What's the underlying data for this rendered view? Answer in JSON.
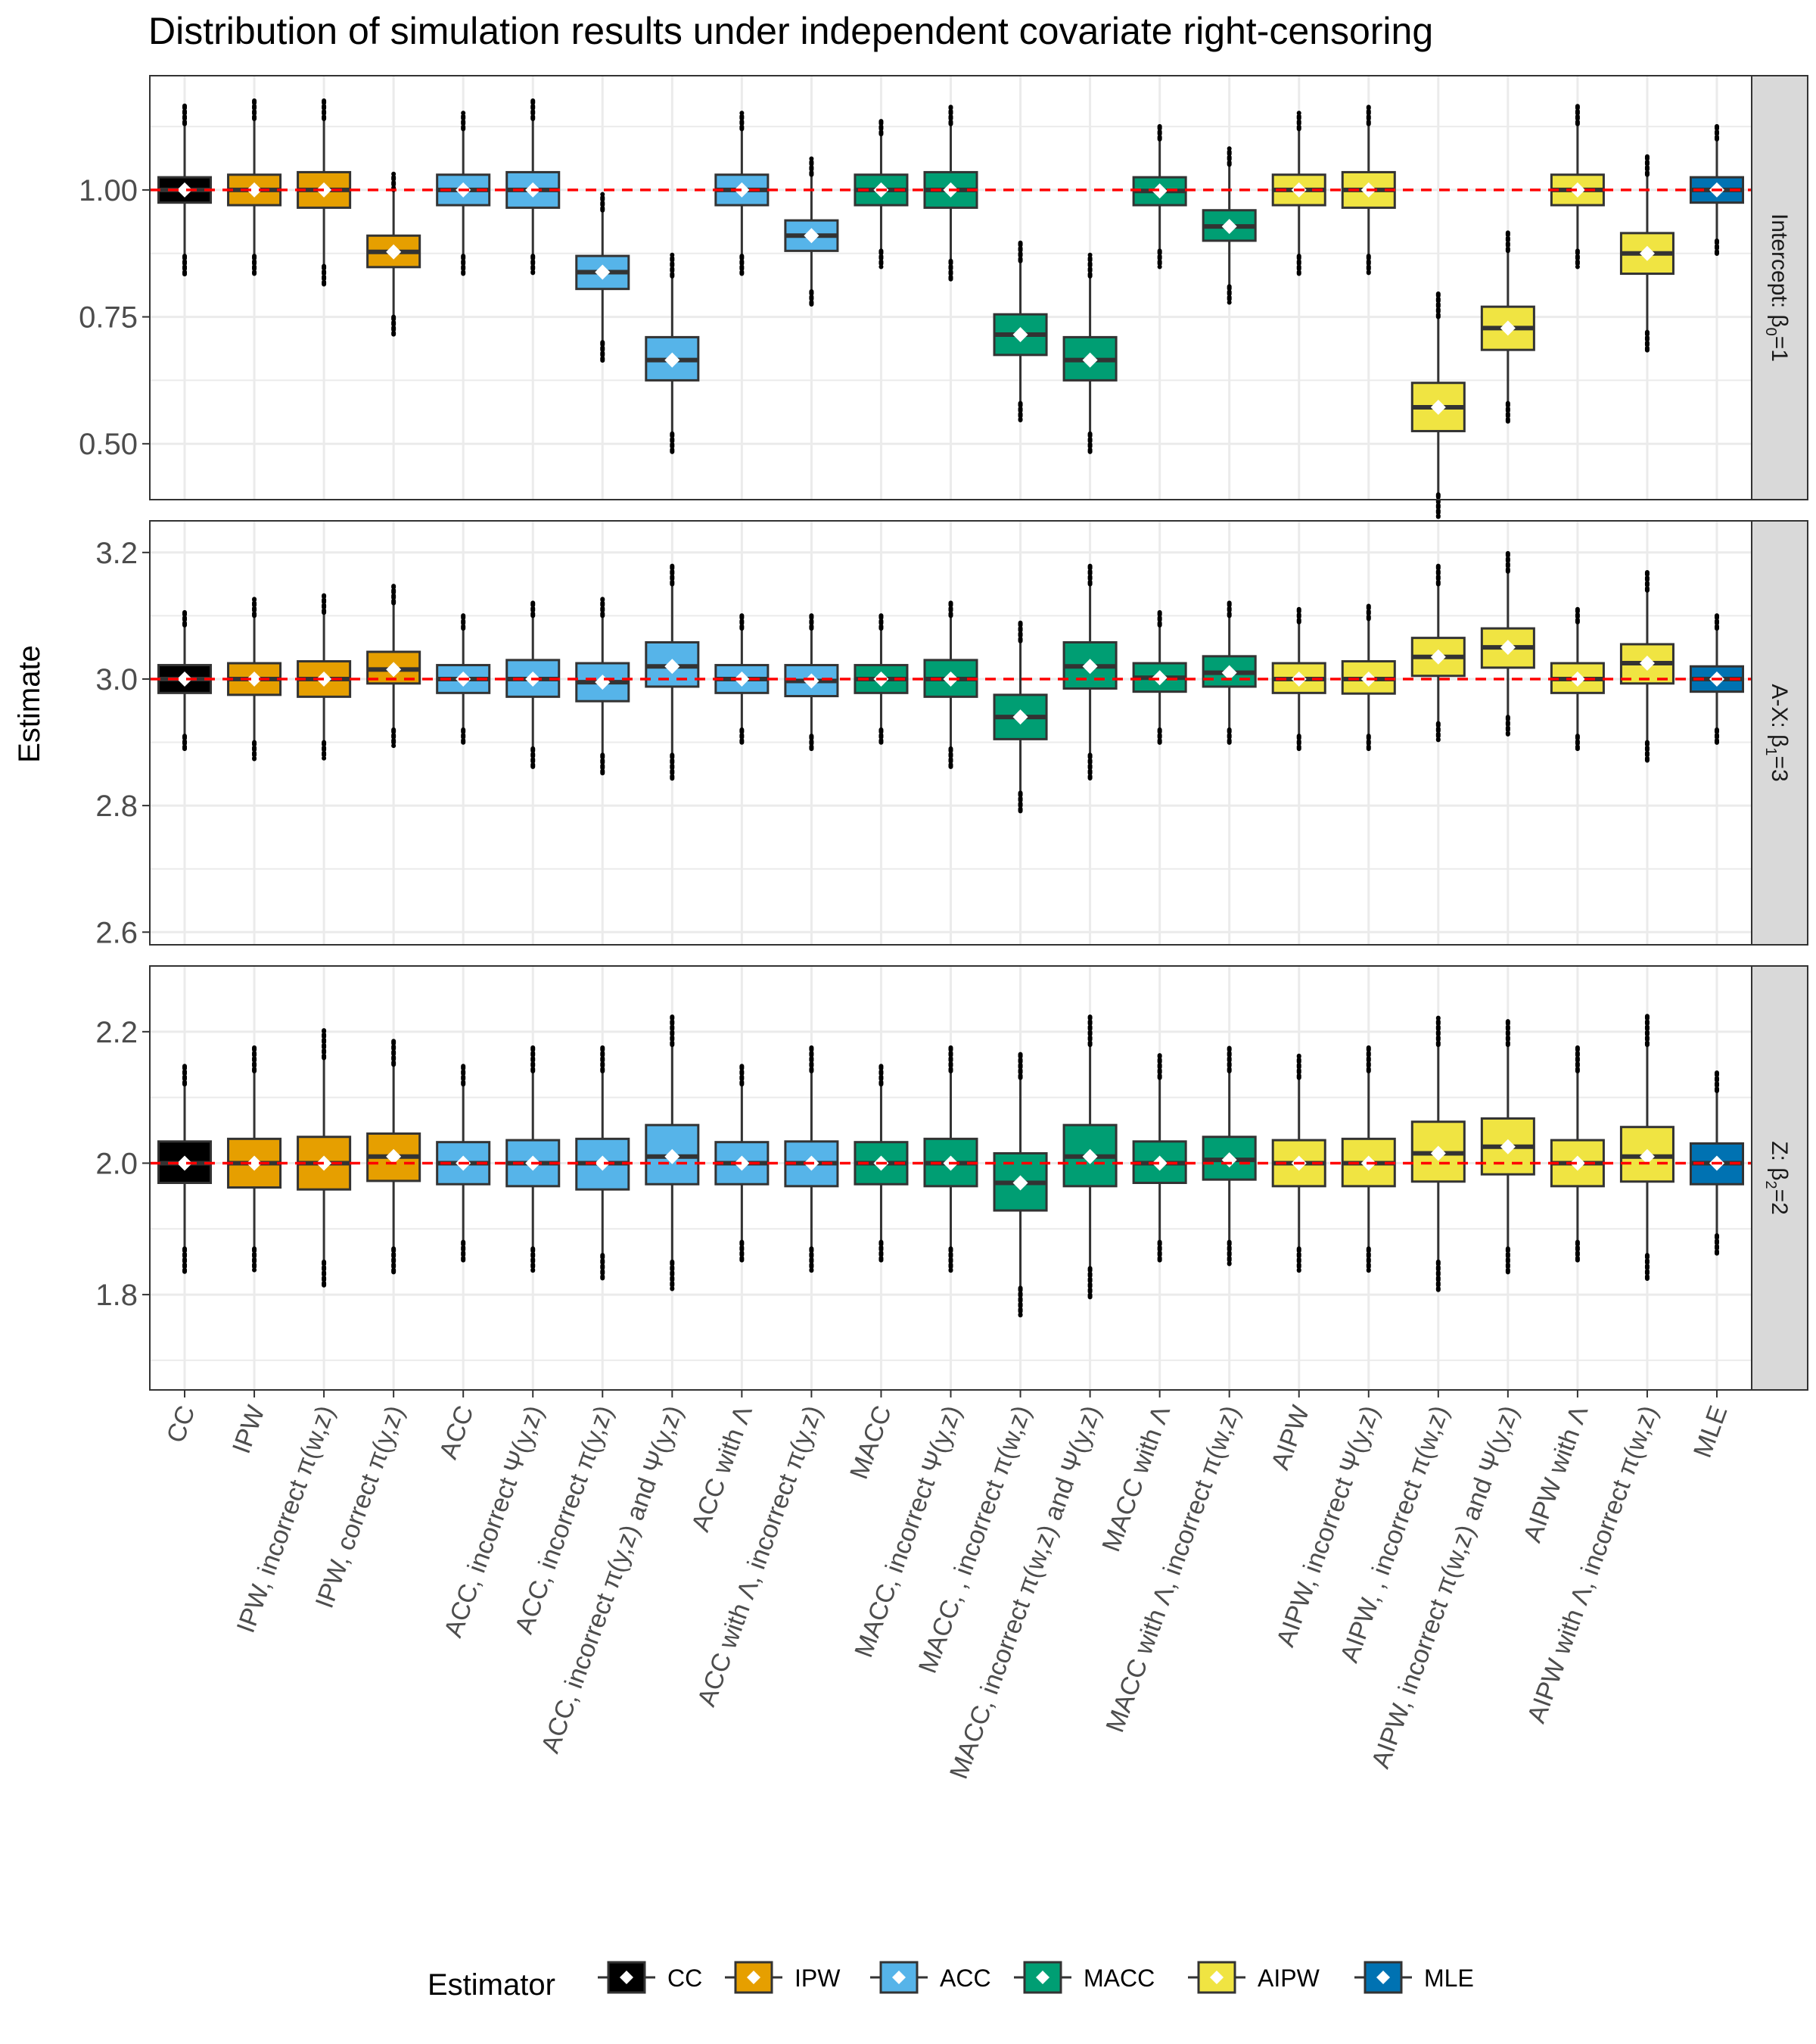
{
  "title": "Distribution of simulation results under independent covariate right-censoring",
  "y_axis_title": "Estimate",
  "legend": {
    "title": "Estimator",
    "items": [
      {
        "label": "CC",
        "color": "#000000"
      },
      {
        "label": "IPW",
        "color": "#E69F00"
      },
      {
        "label": "ACC",
        "color": "#56B4E9"
      },
      {
        "label": "MACC",
        "color": "#009E73"
      },
      {
        "label": "AIPW",
        "color": "#F0E442"
      },
      {
        "label": "MLE",
        "color": "#0072B2"
      }
    ]
  },
  "colors": {
    "reference_line": "#FF0000",
    "mean_marker": "#FFFFFF",
    "grid": "#EBEBEB",
    "strip_fill": "#D9D9D9"
  },
  "chart_data": {
    "type": "box",
    "x_categories": [
      "CC",
      "IPW",
      "IPW, incorrect π(w,z)",
      "IPW, correct π(y,z)",
      "ACC",
      "ACC, incorrect Ψ(y,z)",
      "ACC, incorrect π(y,z)",
      "ACC, incorrect π(y,z) and Ψ(y,z)",
      "ACC with Λ",
      "ACC with Λ, incorrect π(y,z)",
      "MACC",
      "MACC, incorrect Ψ(y,z)",
      "MACC, , incorrect π(w,z)",
      "MACC, incorrect π(w,z) and Ψ(y,z)",
      "MACC with Λ",
      "MACC with Λ, incorrect π(w,z)",
      "AIPW",
      "AIPW, incorrect Ψ(y,z)",
      "AIPW, , incorrect π(w,z)",
      "AIPW, incorrect π(w,z) and Ψ(y,z)",
      "AIPW with Λ",
      "AIPW with Λ, incorrect π(w,z)",
      "MLE"
    ],
    "groups": [
      "CC",
      "IPW",
      "IPW",
      "IPW",
      "ACC",
      "ACC",
      "ACC",
      "ACC",
      "ACC",
      "ACC",
      "MACC",
      "MACC",
      "MACC",
      "MACC",
      "MACC",
      "MACC",
      "AIPW",
      "AIPW",
      "AIPW",
      "AIPW",
      "AIPW",
      "AIPW",
      "MLE"
    ],
    "panels": [
      {
        "strip_main": "Intercept: β",
        "strip_sub": "0",
        "strip_suffix": "=1",
        "reference": 1.0,
        "ylim": [
          0.39,
          1.225
        ],
        "ticks": [
          0.5,
          0.75,
          1.0
        ],
        "tick_labels": [
          "0.50",
          "0.75",
          "1.00"
        ],
        "stats": [
          {
            "whisker_low": 0.87,
            "q1": 0.975,
            "median": 1.0,
            "q3": 1.025,
            "whisker_high": 1.13,
            "mean": 1.0
          },
          {
            "whisker_low": 0.87,
            "q1": 0.97,
            "median": 1.0,
            "q3": 1.03,
            "whisker_high": 1.14,
            "mean": 1.0
          },
          {
            "whisker_low": 0.85,
            "q1": 0.965,
            "median": 1.0,
            "q3": 1.035,
            "whisker_high": 1.14,
            "mean": 1.0
          },
          {
            "whisker_low": 0.75,
            "q1": 0.848,
            "median": 0.878,
            "q3": 0.91,
            "whisker_high": 1.0,
            "mean": 0.878
          },
          {
            "whisker_low": 0.87,
            "q1": 0.97,
            "median": 1.0,
            "q3": 1.03,
            "whisker_high": 1.12,
            "mean": 1.0
          },
          {
            "whisker_low": 0.87,
            "q1": 0.965,
            "median": 1.0,
            "q3": 1.035,
            "whisker_high": 1.14,
            "mean": 1.0
          },
          {
            "whisker_low": 0.7,
            "q1": 0.805,
            "median": 0.838,
            "q3": 0.87,
            "whisker_high": 0.96,
            "mean": 0.838
          },
          {
            "whisker_low": 0.52,
            "q1": 0.625,
            "median": 0.665,
            "q3": 0.71,
            "whisker_high": 0.83,
            "mean": 0.665
          },
          {
            "whisker_low": 0.87,
            "q1": 0.97,
            "median": 1.0,
            "q3": 1.03,
            "whisker_high": 1.12,
            "mean": 1.0
          },
          {
            "whisker_low": 0.8,
            "q1": 0.88,
            "median": 0.91,
            "q3": 0.94,
            "whisker_high": 1.03,
            "mean": 0.91
          },
          {
            "whisker_low": 0.88,
            "q1": 0.97,
            "median": 1.0,
            "q3": 1.03,
            "whisker_high": 1.11,
            "mean": 1.0
          },
          {
            "whisker_low": 0.86,
            "q1": 0.965,
            "median": 1.0,
            "q3": 1.035,
            "whisker_high": 1.13,
            "mean": 1.0
          },
          {
            "whisker_low": 0.58,
            "q1": 0.675,
            "median": 0.715,
            "q3": 0.755,
            "whisker_high": 0.86,
            "mean": 0.715
          },
          {
            "whisker_low": 0.52,
            "q1": 0.625,
            "median": 0.665,
            "q3": 0.71,
            "whisker_high": 0.83,
            "mean": 0.665
          },
          {
            "whisker_low": 0.88,
            "q1": 0.97,
            "median": 0.998,
            "q3": 1.025,
            "whisker_high": 1.1,
            "mean": 0.998
          },
          {
            "whisker_low": 0.81,
            "q1": 0.9,
            "median": 0.928,
            "q3": 0.96,
            "whisker_high": 1.05,
            "mean": 0.928
          },
          {
            "whisker_low": 0.87,
            "q1": 0.97,
            "median": 1.0,
            "q3": 1.03,
            "whisker_high": 1.12,
            "mean": 1.0
          },
          {
            "whisker_low": 0.87,
            "q1": 0.965,
            "median": 1.0,
            "q3": 1.035,
            "whisker_high": 1.13,
            "mean": 1.0
          },
          {
            "whisker_low": 0.4,
            "q1": 0.525,
            "median": 0.572,
            "q3": 0.62,
            "whisker_high": 0.75,
            "mean": 0.572
          },
          {
            "whisker_low": 0.58,
            "q1": 0.685,
            "median": 0.728,
            "q3": 0.77,
            "whisker_high": 0.88,
            "mean": 0.728
          },
          {
            "whisker_low": 0.88,
            "q1": 0.97,
            "median": 1.0,
            "q3": 1.03,
            "whisker_high": 1.13,
            "mean": 1.0
          },
          {
            "whisker_low": 0.72,
            "q1": 0.835,
            "median": 0.875,
            "q3": 0.915,
            "whisker_high": 1.03,
            "mean": 0.875
          },
          {
            "whisker_low": 0.9,
            "q1": 0.975,
            "median": 1.0,
            "q3": 1.025,
            "whisker_high": 1.1,
            "mean": 1.0
          }
        ]
      },
      {
        "strip_main": "A-X: β",
        "strip_sub": "1",
        "strip_suffix": "=3",
        "reference": 3.0,
        "ylim": [
          2.58,
          3.25
        ],
        "ticks": [
          2.6,
          2.8,
          3.0,
          3.2
        ],
        "tick_labels": [
          "2.6",
          "2.8",
          "3.0",
          "3.2"
        ],
        "stats": [
          {
            "whisker_low": 2.91,
            "q1": 2.978,
            "median": 3.0,
            "q3": 3.022,
            "whisker_high": 3.085,
            "mean": 3.0
          },
          {
            "whisker_low": 2.9,
            "q1": 2.975,
            "median": 3.0,
            "q3": 3.025,
            "whisker_high": 3.1,
            "mean": 3.0
          },
          {
            "whisker_low": 2.9,
            "q1": 2.972,
            "median": 3.0,
            "q3": 3.028,
            "whisker_high": 3.105,
            "mean": 3.0
          },
          {
            "whisker_low": 2.92,
            "q1": 2.993,
            "median": 3.015,
            "q3": 3.043,
            "whisker_high": 3.12,
            "mean": 3.015
          },
          {
            "whisker_low": 2.92,
            "q1": 2.978,
            "median": 3.0,
            "q3": 3.022,
            "whisker_high": 3.08,
            "mean": 3.0
          },
          {
            "whisker_low": 2.89,
            "q1": 2.972,
            "median": 3.0,
            "q3": 3.03,
            "whisker_high": 3.1,
            "mean": 3.0
          },
          {
            "whisker_low": 2.88,
            "q1": 2.965,
            "median": 2.995,
            "q3": 3.025,
            "whisker_high": 3.1,
            "mean": 2.995
          },
          {
            "whisker_low": 2.88,
            "q1": 2.988,
            "median": 3.02,
            "q3": 3.058,
            "whisker_high": 3.15,
            "mean": 3.02
          },
          {
            "whisker_low": 2.92,
            "q1": 2.978,
            "median": 3.0,
            "q3": 3.022,
            "whisker_high": 3.08,
            "mean": 3.0
          },
          {
            "whisker_low": 2.91,
            "q1": 2.973,
            "median": 2.997,
            "q3": 3.022,
            "whisker_high": 3.08,
            "mean": 2.997
          },
          {
            "whisker_low": 2.92,
            "q1": 2.978,
            "median": 3.0,
            "q3": 3.022,
            "whisker_high": 3.08,
            "mean": 3.0
          },
          {
            "whisker_low": 2.89,
            "q1": 2.972,
            "median": 3.0,
            "q3": 3.03,
            "whisker_high": 3.1,
            "mean": 3.0
          },
          {
            "whisker_low": 2.82,
            "q1": 2.905,
            "median": 2.94,
            "q3": 2.975,
            "whisker_high": 3.06,
            "mean": 2.94
          },
          {
            "whisker_low": 2.88,
            "q1": 2.985,
            "median": 3.02,
            "q3": 3.058,
            "whisker_high": 3.15,
            "mean": 3.02
          },
          {
            "whisker_low": 2.92,
            "q1": 2.98,
            "median": 3.002,
            "q3": 3.025,
            "whisker_high": 3.085,
            "mean": 3.002
          },
          {
            "whisker_low": 2.92,
            "q1": 2.988,
            "median": 3.01,
            "q3": 3.036,
            "whisker_high": 3.1,
            "mean": 3.01
          },
          {
            "whisker_low": 2.91,
            "q1": 2.978,
            "median": 3.0,
            "q3": 3.025,
            "whisker_high": 3.09,
            "mean": 3.0
          },
          {
            "whisker_low": 2.91,
            "q1": 2.977,
            "median": 3.0,
            "q3": 3.028,
            "whisker_high": 3.095,
            "mean": 3.0
          },
          {
            "whisker_low": 2.93,
            "q1": 3.005,
            "median": 3.035,
            "q3": 3.065,
            "whisker_high": 3.15,
            "mean": 3.035
          },
          {
            "whisker_low": 2.94,
            "q1": 3.018,
            "median": 3.05,
            "q3": 3.08,
            "whisker_high": 3.17,
            "mean": 3.05
          },
          {
            "whisker_low": 2.91,
            "q1": 2.978,
            "median": 3.0,
            "q3": 3.025,
            "whisker_high": 3.09,
            "mean": 3.0
          },
          {
            "whisker_low": 2.9,
            "q1": 2.993,
            "median": 3.025,
            "q3": 3.055,
            "whisker_high": 3.14,
            "mean": 3.025
          },
          {
            "whisker_low": 2.92,
            "q1": 2.98,
            "median": 3.0,
            "q3": 3.02,
            "whisker_high": 3.08,
            "mean": 3.0
          }
        ]
      },
      {
        "strip_main": "Z: β",
        "strip_sub": "2",
        "strip_suffix": "=2",
        "reference": 2.0,
        "ylim": [
          1.655,
          2.3
        ],
        "ticks": [
          1.8,
          2.0,
          2.2
        ],
        "tick_labels": [
          "1.8",
          "2.0",
          "2.2"
        ],
        "stats": [
          {
            "whisker_low": 1.87,
            "q1": 1.97,
            "median": 2.0,
            "q3": 2.033,
            "whisker_high": 2.12,
            "mean": 2.0
          },
          {
            "whisker_low": 1.87,
            "q1": 1.963,
            "median": 2.0,
            "q3": 2.037,
            "whisker_high": 2.14,
            "mean": 2.0
          },
          {
            "whisker_low": 1.85,
            "q1": 1.96,
            "median": 2.0,
            "q3": 2.04,
            "whisker_high": 2.16,
            "mean": 2.0
          },
          {
            "whisker_low": 1.87,
            "q1": 1.973,
            "median": 2.01,
            "q3": 2.045,
            "whisker_high": 2.15,
            "mean": 2.01
          },
          {
            "whisker_low": 1.88,
            "q1": 1.968,
            "median": 2.0,
            "q3": 2.032,
            "whisker_high": 2.12,
            "mean": 2.0
          },
          {
            "whisker_low": 1.87,
            "q1": 1.965,
            "median": 2.0,
            "q3": 2.035,
            "whisker_high": 2.14,
            "mean": 2.0
          },
          {
            "whisker_low": 1.86,
            "q1": 1.96,
            "median": 2.0,
            "q3": 2.037,
            "whisker_high": 2.14,
            "mean": 2.0
          },
          {
            "whisker_low": 1.85,
            "q1": 1.968,
            "median": 2.01,
            "q3": 2.058,
            "whisker_high": 2.18,
            "mean": 2.01
          },
          {
            "whisker_low": 1.88,
            "q1": 1.968,
            "median": 2.0,
            "q3": 2.032,
            "whisker_high": 2.12,
            "mean": 2.0
          },
          {
            "whisker_low": 1.87,
            "q1": 1.965,
            "median": 2.0,
            "q3": 2.033,
            "whisker_high": 2.14,
            "mean": 2.0
          },
          {
            "whisker_low": 1.88,
            "q1": 1.968,
            "median": 2.0,
            "q3": 2.032,
            "whisker_high": 2.12,
            "mean": 2.0
          },
          {
            "whisker_low": 1.87,
            "q1": 1.965,
            "median": 2.0,
            "q3": 2.037,
            "whisker_high": 2.14,
            "mean": 2.0
          },
          {
            "whisker_low": 1.81,
            "q1": 1.928,
            "median": 1.97,
            "q3": 2.015,
            "whisker_high": 2.13,
            "mean": 1.97
          },
          {
            "whisker_low": 1.84,
            "q1": 1.965,
            "median": 2.01,
            "q3": 2.058,
            "whisker_high": 2.18,
            "mean": 2.01
          },
          {
            "whisker_low": 1.88,
            "q1": 1.97,
            "median": 2.0,
            "q3": 2.033,
            "whisker_high": 2.13,
            "mean": 2.0
          },
          {
            "whisker_low": 1.88,
            "q1": 1.975,
            "median": 2.005,
            "q3": 2.04,
            "whisker_high": 2.14,
            "mean": 2.005
          },
          {
            "whisker_low": 1.87,
            "q1": 1.965,
            "median": 2.0,
            "q3": 2.035,
            "whisker_high": 2.13,
            "mean": 2.0
          },
          {
            "whisker_low": 1.87,
            "q1": 1.965,
            "median": 2.0,
            "q3": 2.037,
            "whisker_high": 2.14,
            "mean": 2.0
          },
          {
            "whisker_low": 1.85,
            "q1": 1.972,
            "median": 2.015,
            "q3": 2.063,
            "whisker_high": 2.18,
            "mean": 2.015
          },
          {
            "whisker_low": 1.87,
            "q1": 1.983,
            "median": 2.025,
            "q3": 2.068,
            "whisker_high": 2.18,
            "mean": 2.025
          },
          {
            "whisker_low": 1.88,
            "q1": 1.965,
            "median": 2.0,
            "q3": 2.035,
            "whisker_high": 2.14,
            "mean": 2.0
          },
          {
            "whisker_low": 1.86,
            "q1": 1.972,
            "median": 2.01,
            "q3": 2.055,
            "whisker_high": 2.18,
            "mean": 2.01
          },
          {
            "whisker_low": 1.89,
            "q1": 1.968,
            "median": 2.0,
            "q3": 2.03,
            "whisker_high": 2.11,
            "mean": 2.0
          }
        ]
      }
    ]
  }
}
